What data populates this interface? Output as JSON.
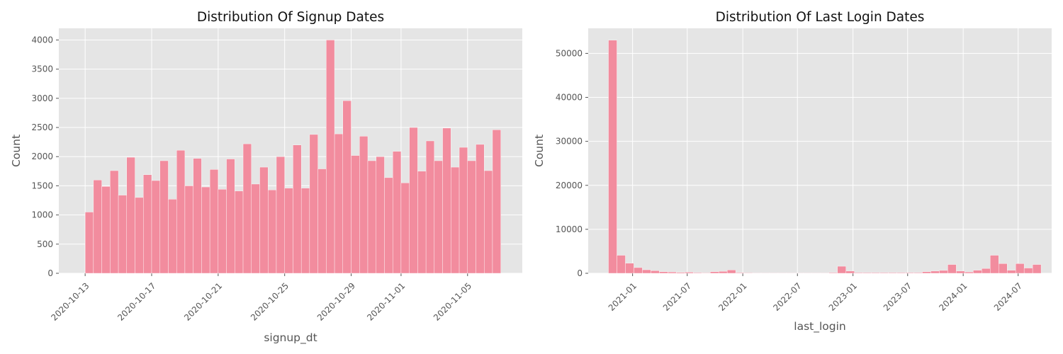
{
  "colors": {
    "bar": "#f28c9e",
    "panel_background": "#e5e5e5",
    "grid": "#ffffff"
  },
  "chart_data": [
    {
      "type": "bar",
      "subtype": "histogram",
      "title": "Distribution Of Signup Dates",
      "xlabel": "signup_dt",
      "ylabel": "Count",
      "x_axis": "date",
      "xlim": [
        "2020-10-11T10:00",
        "2020-11-08T07:00"
      ],
      "ylim": [
        0,
        4200
      ],
      "grid": true,
      "bin_start": "2020-10-13",
      "bin_width_hours": 12,
      "xticks": [
        "2020-10-13",
        "2020-10-17",
        "2020-10-21",
        "2020-10-25",
        "2020-10-29",
        "2020-11-01",
        "2020-11-05"
      ],
      "xtick_positions": [
        "2020-10-13",
        "2020-10-17",
        "2020-10-21",
        "2020-10-25",
        "2020-10-29",
        "2020-11-01",
        "2020-11-05"
      ],
      "yticks": [
        0,
        500,
        1000,
        1500,
        2000,
        2500,
        3000,
        3500,
        4000
      ],
      "values": [
        1050,
        1600,
        1490,
        1760,
        1340,
        1990,
        1300,
        1690,
        1590,
        1930,
        1270,
        2110,
        1500,
        1970,
        1480,
        1780,
        1440,
        1960,
        1410,
        2220,
        1530,
        1820,
        1430,
        2000,
        1460,
        2200,
        1460,
        2380,
        1790,
        4000,
        2390,
        2960,
        2020,
        2350,
        1930,
        2000,
        1640,
        2090,
        1550,
        2500,
        1750,
        2270,
        1930,
        2490,
        1820,
        2160,
        1930,
        2210,
        1760,
        2460
      ]
    },
    {
      "type": "bar",
      "subtype": "histogram",
      "title": "Distribution Of Last Login Dates",
      "xlabel": "last_login",
      "ylabel": "Count",
      "x_axis": "date",
      "xlim": [
        "2020-08-07",
        "2024-10-20"
      ],
      "ylim": [
        0,
        55700
      ],
      "grid": true,
      "bin_start": "2020-10-13",
      "bin_end": "2024-09-15",
      "xticks": [
        "2021-01",
        "2021-07",
        "2022-01",
        "2022-07",
        "2023-01",
        "2023-07",
        "2024-01",
        "2024-07"
      ],
      "xtick_positions": [
        "2021-01-01",
        "2021-07-01",
        "2022-01-01",
        "2022-07-01",
        "2023-01-01",
        "2023-07-01",
        "2024-01-01",
        "2024-07-01"
      ],
      "yticks": [
        0,
        10000,
        20000,
        30000,
        40000,
        50000
      ],
      "values": [
        53000,
        4100,
        2300,
        1300,
        800,
        600,
        350,
        300,
        200,
        250,
        150,
        100,
        350,
        450,
        750,
        150,
        100,
        80,
        80,
        80,
        80,
        80,
        80,
        80,
        80,
        80,
        150,
        1600,
        500,
        150,
        150,
        150,
        150,
        150,
        150,
        150,
        150,
        350,
        500,
        650,
        2000,
        500,
        300,
        700,
        1100,
        4100,
        2200,
        700,
        2200,
        1200,
        2000
      ]
    }
  ]
}
